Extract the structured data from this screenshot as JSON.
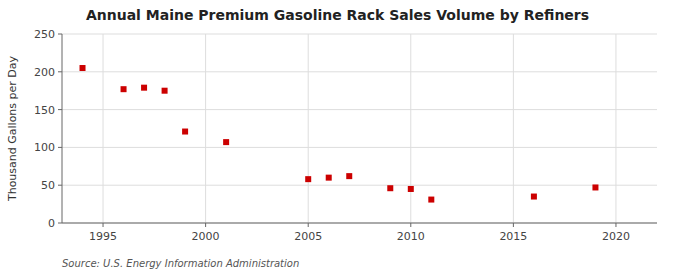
{
  "chart_data": {
    "type": "scatter",
    "title": "Annual Maine Premium Gasoline Rack Sales Volume by Refiners",
    "ylabel": "Thousand Gallons per Day",
    "annotations": [
      "Source: U.S. Energy Information Administration"
    ],
    "x": [
      1994,
      1996,
      1997,
      1998,
      1999,
      2001,
      2005,
      2006,
      2007,
      2009,
      2010,
      2011,
      2016,
      2019
    ],
    "values": [
      205,
      177,
      179,
      175,
      121,
      107,
      58,
      60,
      62,
      46,
      45,
      31,
      35,
      47
    ],
    "color": "#cc0000",
    "marker": "square",
    "xlim": [
      1993,
      2022
    ],
    "ylim": [
      0,
      250
    ],
    "xticks": [
      1995,
      2000,
      2005,
      2010,
      2015,
      2020
    ],
    "yticks": [
      0,
      50,
      100,
      150,
      200,
      250
    ],
    "grid": true
  }
}
